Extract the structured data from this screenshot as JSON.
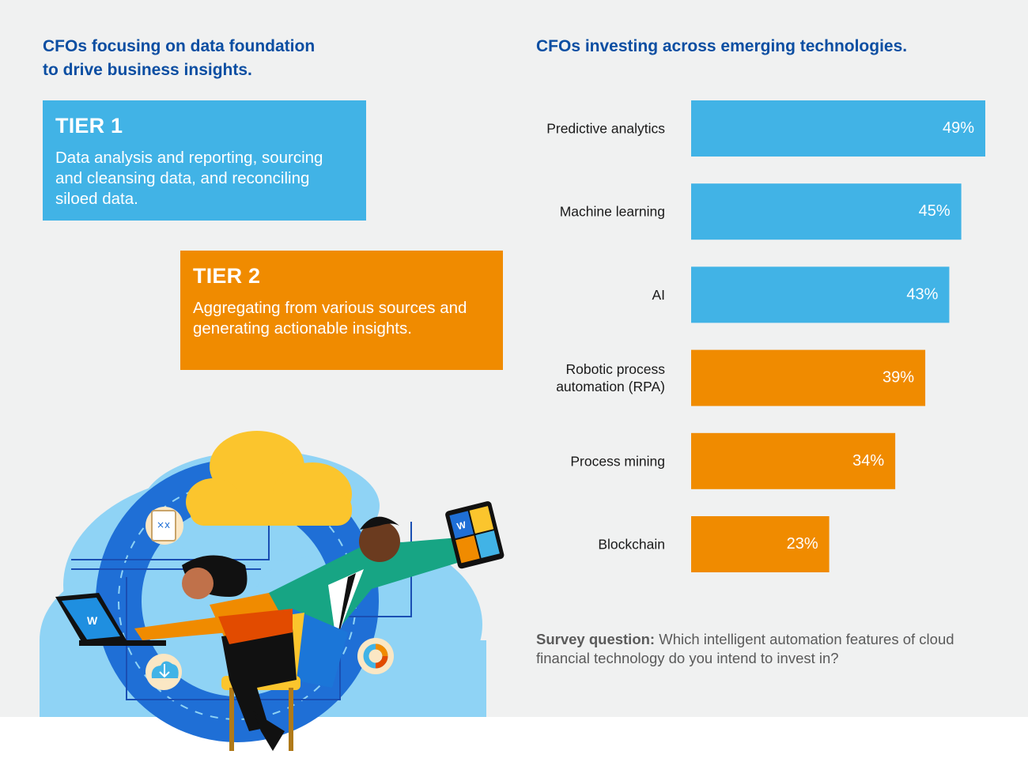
{
  "left": {
    "title_line1": "CFOs focusing on data foundation",
    "title_line2": "to drive business insights."
  },
  "tier1": {
    "title": "TIER 1",
    "text": "Data analysis and reporting, sourcing and cleansing data, and reconciling siloed data.",
    "color": "#41b3e6"
  },
  "tier2": {
    "title": "TIER 2",
    "text": "Aggregating from various sources and generating actionable insights.",
    "color": "#f08b00"
  },
  "right": {
    "title": "CFOs investing across emerging technologies."
  },
  "chart_data": {
    "type": "bar",
    "orientation": "horizontal",
    "title": "CFOs investing across emerging technologies.",
    "categories": [
      [
        "Predictive analytics"
      ],
      [
        "Machine learning"
      ],
      [
        "AI"
      ],
      [
        "Robotic process",
        "automation (RPA)"
      ],
      [
        "Process mining"
      ],
      [
        "Blockchain"
      ]
    ],
    "values": [
      49,
      45,
      43,
      39,
      34,
      23
    ],
    "value_labels": [
      "49%",
      "45%",
      "43%",
      "39%",
      "34%",
      "23%"
    ],
    "unit": "%",
    "colors": [
      "#41b3e6",
      "#41b3e6",
      "#41b3e6",
      "#f08b00",
      "#f08b00",
      "#f08b00"
    ],
    "xlim": [
      0,
      49
    ],
    "grid": false,
    "legend": "none"
  },
  "survey": {
    "label": "Survey question:",
    "text": " Which intelligent automation features of cloud financial technology do you intend to invest in?"
  },
  "illustration": {
    "tablet_letter": "W",
    "laptop_letter": "W"
  }
}
